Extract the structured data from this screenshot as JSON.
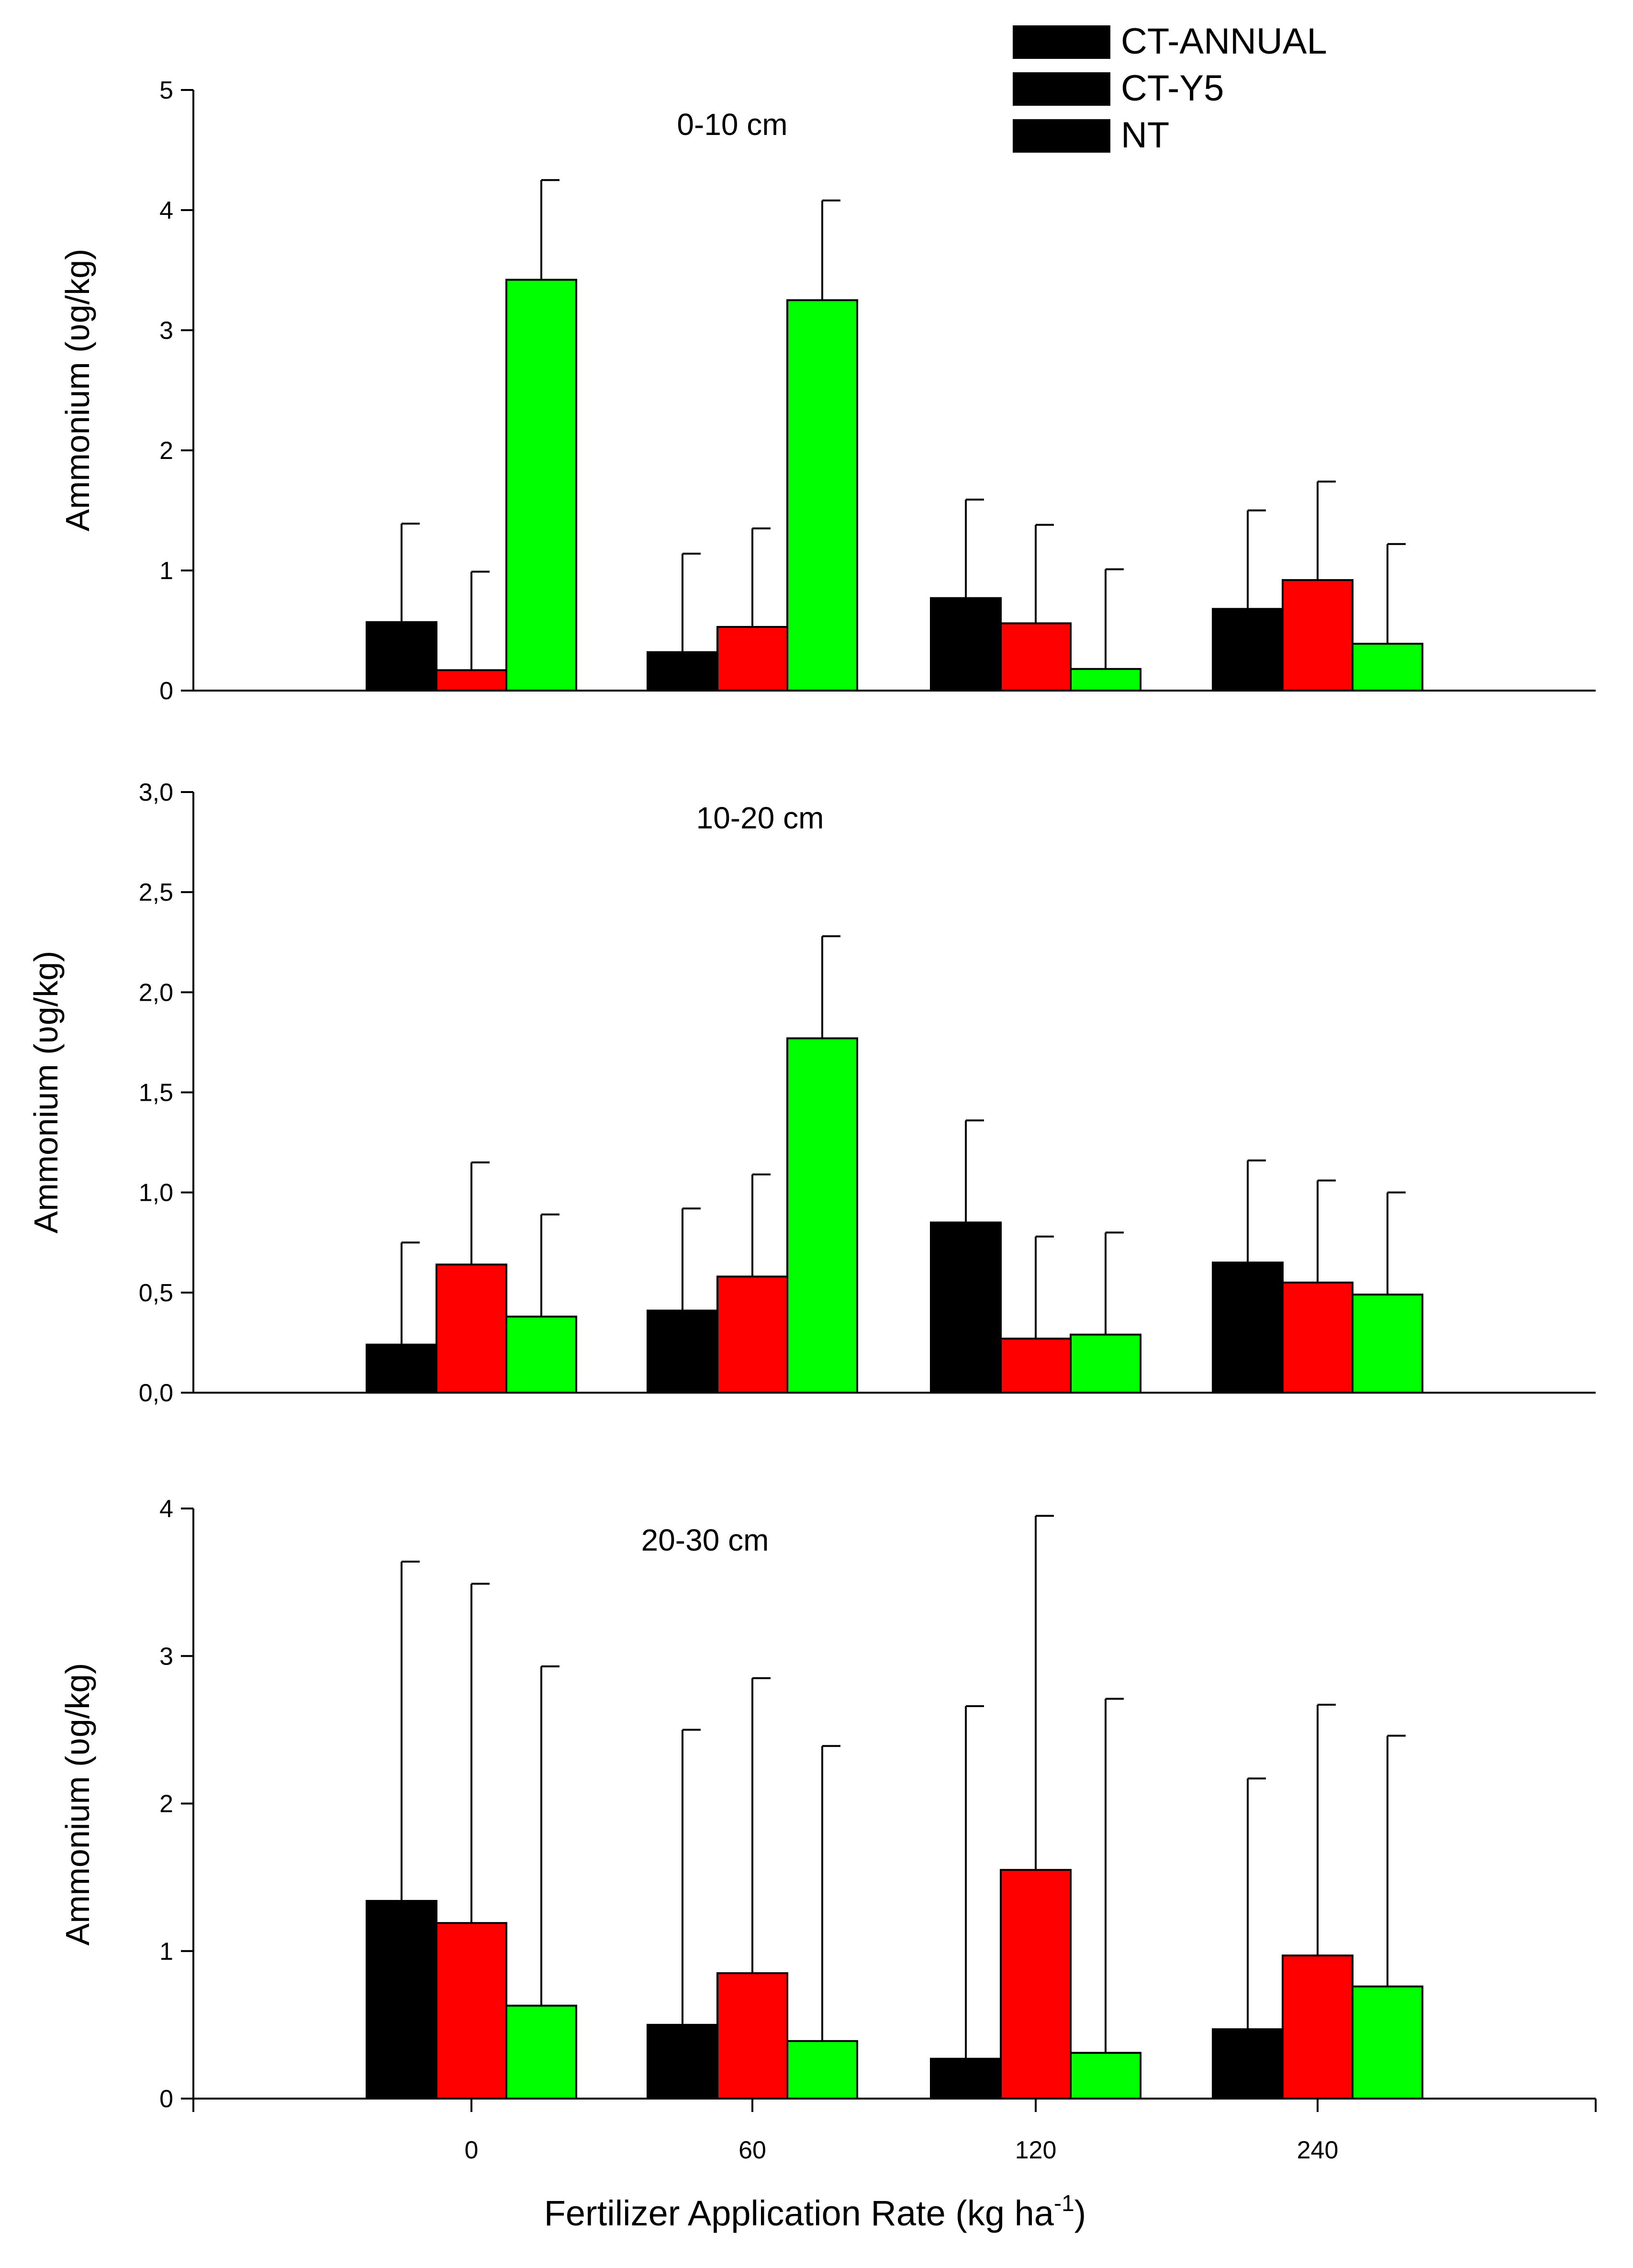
{
  "chart_data": {
    "type": "bar",
    "categories": [
      "0",
      "60",
      "120",
      "240"
    ],
    "xlabel": "Fertilizer Application Rate (kg ha",
    "xlabel_superscript": "-1",
    "xlabel_suffix": ")",
    "legend": [
      {
        "name": "CT-ANNUAL",
        "color": "#000000"
      },
      {
        "name": "CT-Y5",
        "color": "#ff0000"
      },
      {
        "name": "NT",
        "color": "#00ff00"
      }
    ],
    "panels": [
      {
        "title": "0-10 cm",
        "ylabel": "Ammonium (ʋg/kg)",
        "ylim": [
          0,
          5
        ],
        "yticks": [
          0,
          1,
          2,
          3,
          4,
          5
        ],
        "ytick_labels": [
          "0",
          "1",
          "2",
          "3",
          "4",
          "5"
        ],
        "series": [
          {
            "name": "CT-ANNUAL",
            "values": [
              0.57,
              0.32,
              0.77,
              0.68
            ],
            "errors": [
              0.82,
              0.82,
              0.82,
              0.82
            ]
          },
          {
            "name": "CT-Y5",
            "values": [
              0.17,
              0.53,
              0.56,
              0.92
            ],
            "errors": [
              0.82,
              0.82,
              0.82,
              0.82
            ]
          },
          {
            "name": "NT",
            "values": [
              3.42,
              3.25,
              0.18,
              0.39
            ],
            "errors": [
              0.83,
              0.83,
              0.83,
              0.83
            ]
          }
        ]
      },
      {
        "title": "10-20 cm",
        "ylabel": "Ammonium (ʋg/kg)",
        "ylim": [
          0,
          3
        ],
        "yticks": [
          0,
          0.5,
          1,
          1.5,
          2,
          2.5,
          3
        ],
        "ytick_labels": [
          "0,0",
          "0,5",
          "1,0",
          "1,5",
          "2,0",
          "2,5",
          "3,0"
        ],
        "series": [
          {
            "name": "CT-ANNUAL",
            "values": [
              0.24,
              0.41,
              0.85,
              0.65
            ],
            "errors": [
              0.51,
              0.51,
              0.51,
              0.51
            ]
          },
          {
            "name": "CT-Y5",
            "values": [
              0.64,
              0.58,
              0.27,
              0.55
            ],
            "errors": [
              0.51,
              0.51,
              0.51,
              0.51
            ]
          },
          {
            "name": "NT",
            "values": [
              0.38,
              1.77,
              0.29,
              0.49
            ],
            "errors": [
              0.51,
              0.51,
              0.51,
              0.51
            ]
          }
        ]
      },
      {
        "title": "20-30 cm",
        "ylabel": "Ammonium (ʋg/kg)",
        "ylim": [
          0,
          4
        ],
        "yticks": [
          0,
          1,
          2,
          3,
          4
        ],
        "ytick_labels": [
          "0",
          "1",
          "2",
          "3",
          "4"
        ],
        "series": [
          {
            "name": "CT-ANNUAL",
            "values": [
              1.34,
              0.5,
              0.27,
              0.47
            ],
            "errors": [
              2.3,
              2.0,
              2.39,
              1.7
            ]
          },
          {
            "name": "CT-Y5",
            "values": [
              1.19,
              0.85,
              1.55,
              0.97
            ],
            "errors": [
              2.3,
              2.0,
              2.4,
              1.7
            ]
          },
          {
            "name": "NT",
            "values": [
              0.63,
              0.39,
              0.31,
              0.76
            ],
            "errors": [
              2.3,
              2.0,
              2.4,
              1.7
            ]
          }
        ]
      }
    ]
  }
}
